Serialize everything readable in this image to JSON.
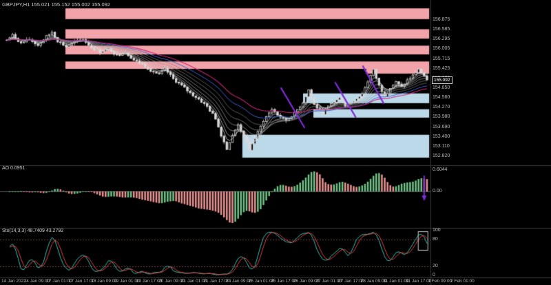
{
  "window": {
    "title": "GBPJPY,H1 155.021 155.152 155.002 155.092"
  },
  "main_chart": {
    "current_price": "155.092",
    "price_axis_labels": [
      "156.875",
      "156.585",
      "156.295",
      "156.005",
      "155.715",
      "155.425",
      "155.135",
      "154.850",
      "154.560",
      "154.270",
      "153.980",
      "153.690",
      "153.400",
      "153.110",
      "152.820"
    ]
  },
  "ao_panel": {
    "label": "AO 0.0951",
    "axis_labels": [
      {
        "text": "0.6044",
        "anchor": "top"
      },
      {
        "text": "0.00",
        "anchor": "zero"
      }
    ]
  },
  "stoch_panel": {
    "label": "Sto(14,3,3) 48.7409 43.2792",
    "axis_labels": [
      "100",
      "80",
      "20",
      "0"
    ],
    "level_lines": [
      80,
      20
    ]
  },
  "time_axis": {
    "labels": [
      "14 Jan 2022",
      "14 Jan 09:00",
      "17 Jan 01:00",
      "17 Jan 17:00",
      "18 Jan 09:00",
      "19 Jan 01:00",
      "19 Jan 17:00",
      "20 Jan 09:00",
      "21 Jan 01:00",
      "21 Jan 17:00",
      "24 Jan 09:00",
      "25 Jan 01:00",
      "25 Jan 17:00",
      "26 Jan 09:00",
      "27 Jan 01:00",
      "27 Jan 17:00",
      "28 Jan 09:00",
      "31 Jan 01:00",
      "31 Jan 17:00",
      "1 Feb 09:00",
      "2 Feb 01:00"
    ]
  },
  "colors": {
    "background": "#000000",
    "axis_text": "#b8b8b8",
    "title_text": "#cfcfcf",
    "separator": "#3a3a3a",
    "candle_outline": "#d9d9d9",
    "bull_body": "#000000",
    "bear_body": "#d9d9d9",
    "resistance_zone": "#f2a3a9",
    "support_zone": "#bcd9ea",
    "trendline": "#7e2cd6",
    "ao_up": "#72c489",
    "ao_down": "#ea9393",
    "ao_zero_line": "#5a5a5a",
    "stoch_main": "#3fbfb2",
    "stoch_signal": "#e04545",
    "stoch_level_line": "#7a4545",
    "ma_gray_shades": [
      "#e6e6e6",
      "#d2d2d2",
      "#bebebe",
      "#a8a8a8",
      "#929292",
      "#7c7c7c"
    ],
    "ma_blue": "#3f63cf",
    "ma_magenta": "#c92878",
    "highlight_box": "#cfcfcf"
  },
  "chart_data": {
    "type": "candlestick",
    "symbol": "GBPJPY",
    "timeframe": "H1",
    "ohlc_current": {
      "open": 155.021,
      "high": 155.152,
      "low": 155.002,
      "close": 155.092
    },
    "bars": 150,
    "y_axis": {
      "min": 152.636,
      "max": 157.346
    },
    "price_waypoints": [
      [
        0,
        156.28
      ],
      [
        2,
        156.42
      ],
      [
        5,
        156.18
      ],
      [
        8,
        156.3
      ],
      [
        11,
        156.12
      ],
      [
        14,
        156.38
      ],
      [
        16,
        156.52
      ],
      [
        18,
        156.25
      ],
      [
        21,
        156.08
      ],
      [
        24,
        156.22
      ],
      [
        27,
        156.3
      ],
      [
        30,
        156.05
      ],
      [
        33,
        155.92
      ],
      [
        36,
        156.02
      ],
      [
        39,
        155.82
      ],
      [
        42,
        155.92
      ],
      [
        45,
        155.68
      ],
      [
        48,
        155.55
      ],
      [
        51,
        155.38
      ],
      [
        54,
        155.25
      ],
      [
        56,
        155.42
      ],
      [
        59,
        155.12
      ],
      [
        62,
        154.92
      ],
      [
        65,
        154.7
      ],
      [
        68,
        154.52
      ],
      [
        71,
        154.3
      ],
      [
        74,
        153.95
      ],
      [
        76,
        153.45
      ],
      [
        78,
        153.05
      ],
      [
        80,
        153.42
      ],
      [
        82,
        153.78
      ],
      [
        84,
        153.4
      ],
      [
        86,
        153.02
      ],
      [
        88,
        153.35
      ],
      [
        91,
        153.88
      ],
      [
        94,
        154.22
      ],
      [
        96,
        154.05
      ],
      [
        99,
        153.88
      ],
      [
        102,
        154.1
      ],
      [
        105,
        154.42
      ],
      [
        107,
        154.8
      ],
      [
        109,
        154.35
      ],
      [
        112,
        154.1
      ],
      [
        115,
        154.38
      ],
      [
        118,
        154.55
      ],
      [
        120,
        154.32
      ],
      [
        123,
        154.48
      ],
      [
        126,
        154.68
      ],
      [
        128,
        155.05
      ],
      [
        130,
        155.38
      ],
      [
        132,
        154.92
      ],
      [
        134,
        154.62
      ],
      [
        136,
        154.85
      ],
      [
        138,
        155.02
      ],
      [
        140,
        154.88
      ],
      [
        142,
        155.08
      ],
      [
        144,
        155.22
      ],
      [
        146,
        155.42
      ],
      [
        148,
        155.18
      ],
      [
        149,
        155.092
      ]
    ],
    "ma_ribbon_periods": [
      4,
      6,
      9,
      13,
      18,
      24,
      32,
      42
    ],
    "zones": [
      {
        "kind": "resistance",
        "price_from": 156.9,
        "price_to": 157.22,
        "x_from": 0.152,
        "x_to": 0.997
      },
      {
        "kind": "resistance",
        "price_from": 156.32,
        "price_to": 156.6,
        "x_from": 0.152,
        "x_to": 0.997
      },
      {
        "kind": "resistance",
        "price_from": 155.85,
        "price_to": 156.11,
        "x_from": 0.152,
        "x_to": 0.997
      },
      {
        "kind": "resistance",
        "price_from": 155.42,
        "price_to": 155.64,
        "x_from": 0.152,
        "x_to": 0.997
      },
      {
        "kind": "resistance",
        "price_from": 155.28,
        "price_to": 155.5,
        "x_from": 0.851,
        "x_to": 0.997
      },
      {
        "kind": "support",
        "price_from": 154.4,
        "price_to": 154.69,
        "x_from": 0.704,
        "x_to": 0.997
      },
      {
        "kind": "support",
        "price_from": 153.97,
        "price_to": 154.22,
        "x_from": 0.728,
        "x_to": 0.997
      },
      {
        "kind": "support",
        "price_from": 152.78,
        "price_to": 153.46,
        "x_from": 0.563,
        "x_to": 0.997
      }
    ],
    "trendlines": [
      {
        "x1": 0.653,
        "p1": 154.85,
        "x2": 0.707,
        "p2": 153.68
      },
      {
        "x1": 0.779,
        "p1": 155.01,
        "x2": 0.826,
        "p2": 153.99
      },
      {
        "x1": 0.843,
        "p1": 155.5,
        "x2": 0.891,
        "p2": 154.4
      }
    ],
    "ao_indicator": {
      "name": "AO",
      "current": 0.0951
    },
    "stoch_indicator": {
      "name": "Stochastic",
      "params": [
        14,
        3,
        3
      ],
      "main": 48.7409,
      "signal": 43.2792
    },
    "ao_arrow_bar": 148
  }
}
